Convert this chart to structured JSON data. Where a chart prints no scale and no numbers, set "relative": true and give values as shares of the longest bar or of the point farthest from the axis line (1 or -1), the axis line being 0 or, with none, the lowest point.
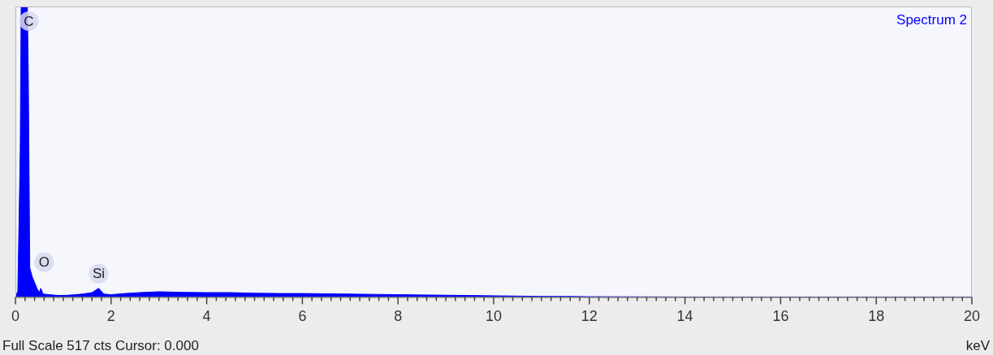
{
  "chart_data": {
    "type": "area",
    "relative": true,
    "xlabel": "keV",
    "legend": "top right",
    "xlim": [
      0,
      20
    ],
    "xticks": [
      0,
      {
        "value": 0.2,
        "label": null
      },
      {
        "value": 0.4,
        "label": null
      },
      {
        "value": 0.6,
        "label": null
      },
      {
        "value": 0.8,
        "label": null
      },
      {
        "value": 1,
        "label": null
      },
      {
        "value": 1.2,
        "label": null
      },
      {
        "value": 1.4,
        "label": null
      },
      {
        "value": 1.6,
        "label": null
      },
      {
        "value": 1.8,
        "label": null
      },
      2,
      {
        "value": 2.2,
        "label": null
      },
      {
        "value": 2.4,
        "label": null
      },
      {
        "value": 2.6,
        "label": null
      },
      {
        "value": 2.8,
        "label": null
      },
      {
        "value": 3,
        "label": null
      },
      {
        "value": 3.2,
        "label": null
      },
      {
        "value": 3.4,
        "label": null
      },
      {
        "value": 3.6,
        "label": null
      },
      {
        "value": 3.8,
        "label": null
      },
      4,
      {
        "value": 4.2,
        "label": null
      },
      {
        "value": 4.4,
        "label": null
      },
      {
        "value": 4.6,
        "label": null
      },
      {
        "value": 4.8,
        "label": null
      },
      {
        "value": 5,
        "label": null
      },
      {
        "value": 5.2,
        "label": null
      },
      {
        "value": 5.4,
        "label": null
      },
      {
        "value": 5.6,
        "label": null
      },
      {
        "value": 5.8,
        "label": null
      },
      6,
      {
        "value": 6.2,
        "label": null
      },
      {
        "value": 6.4,
        "label": null
      },
      {
        "value": 6.6,
        "label": null
      },
      {
        "value": 6.8,
        "label": null
      },
      {
        "value": 7,
        "label": null
      },
      {
        "value": 7.2,
        "label": null
      },
      {
        "value": 7.4,
        "label": null
      },
      {
        "value": 7.6,
        "label": null
      },
      {
        "value": 7.8,
        "label": null
      },
      8,
      {
        "value": 8.2,
        "label": null
      },
      {
        "value": 8.4,
        "label": null
      },
      {
        "value": 8.6,
        "label": null
      },
      {
        "value": 8.8,
        "label": null
      },
      {
        "value": 9,
        "label": null
      },
      {
        "value": 9.2,
        "label": null
      },
      {
        "value": 9.4,
        "label": null
      },
      {
        "value": 9.6,
        "label": null
      },
      {
        "value": 9.8,
        "label": null
      },
      10,
      {
        "value": 10.2,
        "label": null
      },
      {
        "value": 10.4,
        "label": null
      },
      {
        "value": 10.6,
        "label": null
      },
      {
        "value": 10.8,
        "label": null
      },
      {
        "value": 11,
        "label": null
      },
      {
        "value": 11.2,
        "label": null
      },
      {
        "value": 11.4,
        "label": null
      },
      {
        "value": 11.6,
        "label": null
      },
      {
        "value": 11.8,
        "label": null
      },
      12,
      {
        "value": 12.2,
        "label": null
      },
      {
        "value": 12.4,
        "label": null
      },
      {
        "value": 12.6,
        "label": null
      },
      {
        "value": 12.8,
        "label": null
      },
      {
        "value": 13,
        "label": null
      },
      {
        "value": 13.2,
        "label": null
      },
      {
        "value": 13.4,
        "label": null
      },
      {
        "value": 13.6,
        "label": null
      },
      {
        "value": 13.8,
        "label": null
      },
      14,
      {
        "value": 14.2,
        "label": null
      },
      {
        "value": 14.4,
        "label": null
      },
      {
        "value": 14.6,
        "label": null
      },
      {
        "value": 14.8,
        "label": null
      },
      {
        "value": 15,
        "label": null
      },
      {
        "value": 15.2,
        "label": null
      },
      {
        "value": 15.4,
        "label": null
      },
      {
        "value": 15.6,
        "label": null
      },
      {
        "value": 15.8,
        "label": null
      },
      16,
      {
        "value": 16.2,
        "label": null
      },
      {
        "value": 16.4,
        "label": null
      },
      {
        "value": 16.6,
        "label": null
      },
      {
        "value": 16.8,
        "label": null
      },
      {
        "value": 17,
        "label": null
      },
      {
        "value": 17.2,
        "label": null
      },
      {
        "value": 17.4,
        "label": null
      },
      {
        "value": 17.6,
        "label": null
      },
      {
        "value": 17.8,
        "label": null
      },
      18,
      {
        "value": 18.2,
        "label": null
      },
      {
        "value": 18.4,
        "label": null
      },
      {
        "value": 18.6,
        "label": null
      },
      {
        "value": 18.8,
        "label": null
      },
      {
        "value": 19,
        "label": null
      },
      {
        "value": 19.2,
        "label": null
      },
      {
        "value": 19.4,
        "label": null
      },
      {
        "value": 19.6,
        "label": null
      },
      {
        "value": 19.8,
        "label": null
      },
      20
    ],
    "series": [
      {
        "name": "Spectrum 2",
        "color": "#0000ff",
        "x": [
          0,
          0.05,
          0.1,
          0.12,
          0.25,
          0.27,
          0.3,
          0.35,
          0.4,
          0.45,
          0.5,
          0.53,
          0.58,
          0.7,
          0.9,
          1.1,
          1.4,
          1.6,
          1.74,
          1.85,
          2,
          2.3,
          2.6,
          3,
          3.5,
          4,
          4.5,
          5,
          5.5,
          6,
          6.5,
          7,
          7.5,
          8,
          8.5,
          9,
          9.5,
          10,
          10.5,
          11,
          11.5,
          12,
          14,
          20
        ],
        "values": [
          0,
          0.02,
          0.5,
          1,
          1,
          0.75,
          0.1,
          0.07,
          0.05,
          0.03,
          0.015,
          0.03,
          0.01,
          0.008,
          0.005,
          0.006,
          0.01,
          0.015,
          0.03,
          0.01,
          0.008,
          0.012,
          0.015,
          0.018,
          0.016,
          0.015,
          0.015,
          0.013,
          0.012,
          0.012,
          0.011,
          0.01,
          0.009,
          0.008,
          0.007,
          0.006,
          0.005,
          0.004,
          0.003,
          0.002,
          0.002,
          0.001,
          0,
          0
        ]
      }
    ],
    "annotations": [
      {
        "text": "C",
        "x": 0.28,
        "y": 0.95
      },
      {
        "text": "O",
        "x": 0.6,
        "y": 0.12
      },
      {
        "text": "Si",
        "x": 1.74,
        "y": 0.08
      },
      "Full Scale 517 cts Cursor: 0.000"
    ]
  }
}
